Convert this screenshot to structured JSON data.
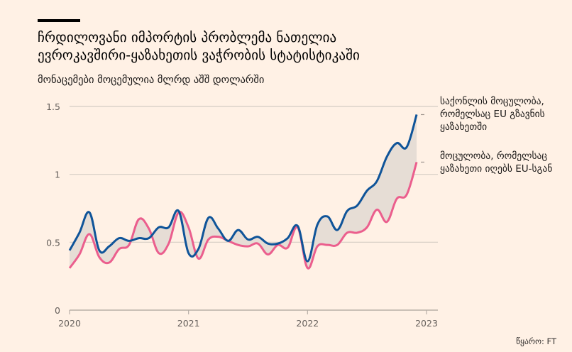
{
  "header": {
    "title_line1": "ჩრდილოვანი იმპორტის პრობლემა ნათელია",
    "title_line2": "ევროკავშირი-ყაზახეთის ვაჭრობის სტატისტიკაში",
    "subtitle": "მონაცემები მოცემულია მლრდ აშშ დოლარში"
  },
  "legend": {
    "series1_line1": "საქონლის მოცულობა,",
    "series1_line2": "რომელსაც EU გზავნის",
    "series1_line3": "ყაზახეთში",
    "series2_line1": "მოცულობა, რომელსაც",
    "series2_line2": "ყაზახეთი იღებს EU-სგან"
  },
  "source": "წყარო: FT",
  "colors": {
    "background": "#fff1e5",
    "series1": "#0f5499",
    "series2": "#eb5e8d",
    "gap_fill": "#e6ddd5",
    "grid": "#d4ccc4",
    "axis": "#b8afa7"
  },
  "chart_data": {
    "type": "line",
    "title": "ჩრდილოვანი იმპორტის პრობლემა ნათელია ევროკავშირი-ყაზახეთის ვაჭრობის სტატისტიკაში",
    "subtitle": "მონაცემები მოცემულია მლრდ აშშ დოლარში",
    "xlabel": "",
    "ylabel": "",
    "xlim": [
      2020,
      2023.1
    ],
    "ylim": [
      0,
      1.5
    ],
    "yticks": [
      0,
      0.5,
      1,
      1.5
    ],
    "ytick_labels": [
      "0",
      "0.5",
      "1",
      "1.5"
    ],
    "xticks": [
      2020,
      2021,
      2022,
      2023
    ],
    "xtick_labels": [
      "2020",
      "2021",
      "2022",
      "2023"
    ],
    "grid": true,
    "legend_position": "right",
    "x": [
      2020.0,
      2020.083,
      2020.167,
      2020.25,
      2020.333,
      2020.417,
      2020.5,
      2020.583,
      2020.667,
      2020.75,
      2020.833,
      2020.917,
      2021.0,
      2021.083,
      2021.167,
      2021.25,
      2021.333,
      2021.417,
      2021.5,
      2021.583,
      2021.667,
      2021.75,
      2021.833,
      2021.917,
      2022.0,
      2022.083,
      2022.167,
      2022.25,
      2022.333,
      2022.417,
      2022.5,
      2022.583,
      2022.667,
      2022.75,
      2022.833,
      2022.917
    ],
    "series": [
      {
        "name": "საქონლის მოცულობა, რომელსაც EU გზავნის ყაზახეთში",
        "color": "#0f5499",
        "values": [
          0.44,
          0.57,
          0.72,
          0.44,
          0.47,
          0.53,
          0.51,
          0.53,
          0.53,
          0.61,
          0.61,
          0.73,
          0.42,
          0.45,
          0.68,
          0.6,
          0.51,
          0.59,
          0.52,
          0.54,
          0.49,
          0.49,
          0.53,
          0.62,
          0.36,
          0.63,
          0.69,
          0.59,
          0.73,
          0.77,
          0.88,
          0.95,
          1.13,
          1.23,
          1.2,
          1.44
        ]
      },
      {
        "name": "მოცულობა, რომელსაც ყაზახეთი იღებს EU-სგან",
        "color": "#eb5e8d",
        "values": [
          0.31,
          0.41,
          0.56,
          0.39,
          0.35,
          0.45,
          0.48,
          0.67,
          0.6,
          0.42,
          0.49,
          0.72,
          0.61,
          0.38,
          0.52,
          0.54,
          0.51,
          0.48,
          0.47,
          0.49,
          0.41,
          0.48,
          0.46,
          0.61,
          0.31,
          0.47,
          0.48,
          0.48,
          0.57,
          0.57,
          0.61,
          0.74,
          0.65,
          0.82,
          0.85,
          1.09
        ]
      }
    ]
  }
}
